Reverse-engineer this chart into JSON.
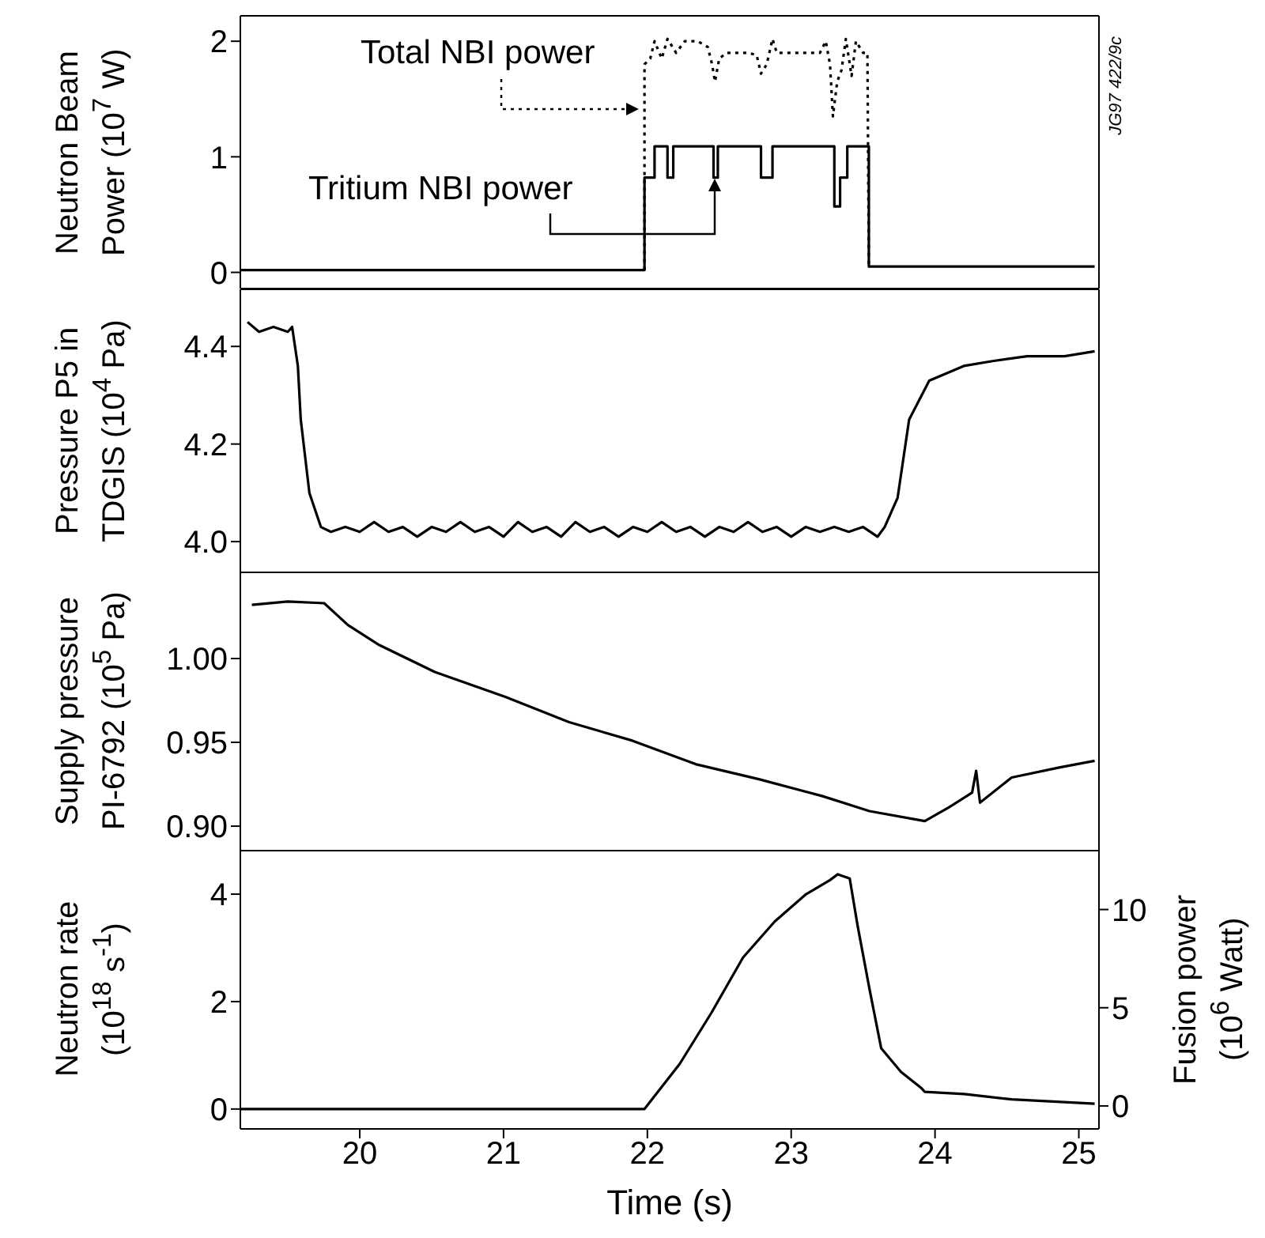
{
  "chart_data": [
    {
      "type": "line",
      "ylabel": "Neutron Beam Power (10$^{7}$ W)",
      "xlim": [
        19.17,
        25.14
      ],
      "xticks": [
        20,
        21,
        22,
        23,
        24,
        25
      ],
      "ylim": [
        -0.14,
        2.22
      ],
      "yticks": [
        0,
        1,
        2
      ],
      "tick_labels": "y",
      "annotations": [
        "JG97 422/9c"
      ],
      "series": [
        {
          "name": "Total NBI power",
          "color": "#000000",
          "line_style": "dotted",
          "x": [
            21.98,
            21.98,
            22.02,
            22.05,
            22.1,
            22.14,
            22.2,
            22.26,
            22.35,
            22.42,
            22.45,
            22.47,
            22.5,
            22.55,
            22.7,
            22.76,
            22.79,
            22.83,
            22.87,
            22.9,
            23.2,
            23.24,
            23.27,
            23.29,
            23.32,
            23.35,
            23.38,
            23.42,
            23.45,
            23.5,
            23.53,
            23.54
          ],
          "values": [
            0.02,
            1.8,
            1.85,
            2.0,
            1.85,
            2.02,
            1.9,
            2.0,
            2.0,
            1.95,
            1.8,
            1.65,
            1.85,
            1.9,
            1.9,
            1.88,
            1.72,
            1.8,
            2.02,
            1.9,
            1.9,
            2.0,
            1.8,
            1.35,
            1.65,
            1.75,
            2.02,
            1.7,
            2.0,
            1.9,
            1.9,
            0.05
          ]
        },
        {
          "name": "Tritium NBI power",
          "color": "#000000",
          "line_style": "solid",
          "x": [
            19.17,
            21.98,
            21.98,
            22.05,
            22.05,
            22.14,
            22.14,
            22.18,
            22.18,
            22.46,
            22.46,
            22.49,
            22.49,
            22.79,
            22.79,
            22.87,
            22.87,
            23.3,
            23.3,
            23.34,
            23.34,
            23.39,
            23.39,
            23.54,
            23.54,
            25.11
          ],
          "values": [
            0.02,
            0.02,
            0.82,
            0.82,
            1.09,
            1.09,
            0.82,
            0.82,
            1.09,
            1.09,
            0.82,
            0.82,
            1.09,
            1.09,
            0.82,
            0.82,
            1.09,
            1.09,
            0.57,
            0.57,
            0.82,
            0.82,
            1.09,
            1.09,
            0.05,
            0.05
          ]
        }
      ]
    },
    {
      "type": "line",
      "ylabel": "Pressure P5 in TDGIS (10$^{4}$ Pa)",
      "xlim": [
        19.17,
        25.14
      ],
      "xticks": [
        20,
        21,
        22,
        23,
        24,
        25
      ],
      "ylim": [
        3.937,
        4.517
      ],
      "yticks": [
        {
          "value": 4,
          "label": "4.0"
        },
        4.2,
        4.4
      ],
      "tick_labels": "y",
      "series": [
        {
          "color": "#000000",
          "x": [
            19.22,
            19.3,
            19.4,
            19.5,
            19.53,
            19.57,
            19.59,
            19.65,
            19.73,
            19.8,
            19.9,
            20.0,
            20.1,
            20.2,
            20.3,
            20.4,
            20.5,
            20.6,
            20.7,
            20.8,
            20.9,
            21.0,
            21.1,
            21.2,
            21.3,
            21.4,
            21.5,
            21.6,
            21.7,
            21.8,
            21.9,
            22.0,
            22.1,
            22.2,
            22.3,
            22.4,
            22.5,
            22.6,
            22.7,
            22.8,
            22.9,
            23.0,
            23.1,
            23.2,
            23.3,
            23.4,
            23.5,
            23.6,
            23.65,
            23.74,
            23.82,
            23.96,
            24.2,
            24.4,
            24.64,
            24.9,
            25.11
          ],
          "values": [
            4.45,
            4.43,
            4.44,
            4.43,
            4.44,
            4.36,
            4.25,
            4.1,
            4.03,
            4.02,
            4.03,
            4.02,
            4.04,
            4.02,
            4.03,
            4.01,
            4.03,
            4.02,
            4.04,
            4.02,
            4.03,
            4.01,
            4.04,
            4.02,
            4.03,
            4.01,
            4.04,
            4.02,
            4.03,
            4.01,
            4.03,
            4.02,
            4.04,
            4.02,
            4.03,
            4.01,
            4.03,
            4.02,
            4.04,
            4.02,
            4.03,
            4.01,
            4.03,
            4.02,
            4.03,
            4.02,
            4.03,
            4.01,
            4.03,
            4.09,
            4.25,
            4.33,
            4.36,
            4.37,
            4.38,
            4.38,
            4.39
          ]
        }
      ]
    },
    {
      "type": "line",
      "ylabel": "Supply pressure PI-6792 (10$^{5}$ Pa)",
      "xlim": [
        19.17,
        25.14
      ],
      "xticks": [
        20,
        21,
        22,
        23,
        24,
        25
      ],
      "ylim": [
        0.8854,
        1.0514
      ],
      "yticks": [
        {
          "value": 0.9,
          "label": "0.90"
        },
        0.95,
        {
          "value": 1,
          "label": "1.00"
        }
      ],
      "tick_labels": "y",
      "series": [
        {
          "color": "#000000",
          "x": [
            19.25,
            19.5,
            19.753,
            19.918,
            20.137,
            20.522,
            21.016,
            21.456,
            21.896,
            22.335,
            22.775,
            23.214,
            23.544,
            23.929,
            24.093,
            24.258,
            24.286,
            24.313,
            24.533,
            24.863,
            25.11
          ],
          "values": [
            1.032,
            1.034,
            1.033,
            1.02,
            1.008,
            0.992,
            0.977,
            0.962,
            0.951,
            0.937,
            0.928,
            0.918,
            0.909,
            0.903,
            0.911,
            0.92,
            0.933,
            0.914,
            0.929,
            0.935,
            0.939
          ]
        }
      ]
    },
    {
      "type": "line",
      "xlabel": "Time (s)",
      "ylabel": "Neutron rate (10$^{18}$ s$^{-1}$)",
      "y2label": "Fusion power (10$^{6}$ Watt)",
      "xlim": [
        19.17,
        25.14
      ],
      "xticks": [
        20,
        21,
        22,
        23,
        24,
        25
      ],
      "ylim": [
        -0.37,
        4.81
      ],
      "yticks": [
        0,
        2,
        4
      ],
      "y2lim": [
        -1.17,
        13.0
      ],
      "y2ticks": [
        0,
        5,
        10
      ],
      "series": [
        {
          "color": "#000000",
          "x": [
            19.17,
            21.98,
            22.225,
            22.445,
            22.665,
            22.885,
            23.104,
            23.269,
            23.324,
            23.407,
            23.462,
            23.544,
            23.626,
            23.764,
            23.901,
            23.929,
            24.203,
            24.533,
            25.11
          ],
          "values": [
            0,
            0,
            0.84,
            1.79,
            2.82,
            3.49,
            4.0,
            4.26,
            4.37,
            4.29,
            3.41,
            2.24,
            1.13,
            0.69,
            0.4,
            0.32,
            0.28,
            0.18,
            0.1
          ]
        }
      ]
    }
  ]
}
